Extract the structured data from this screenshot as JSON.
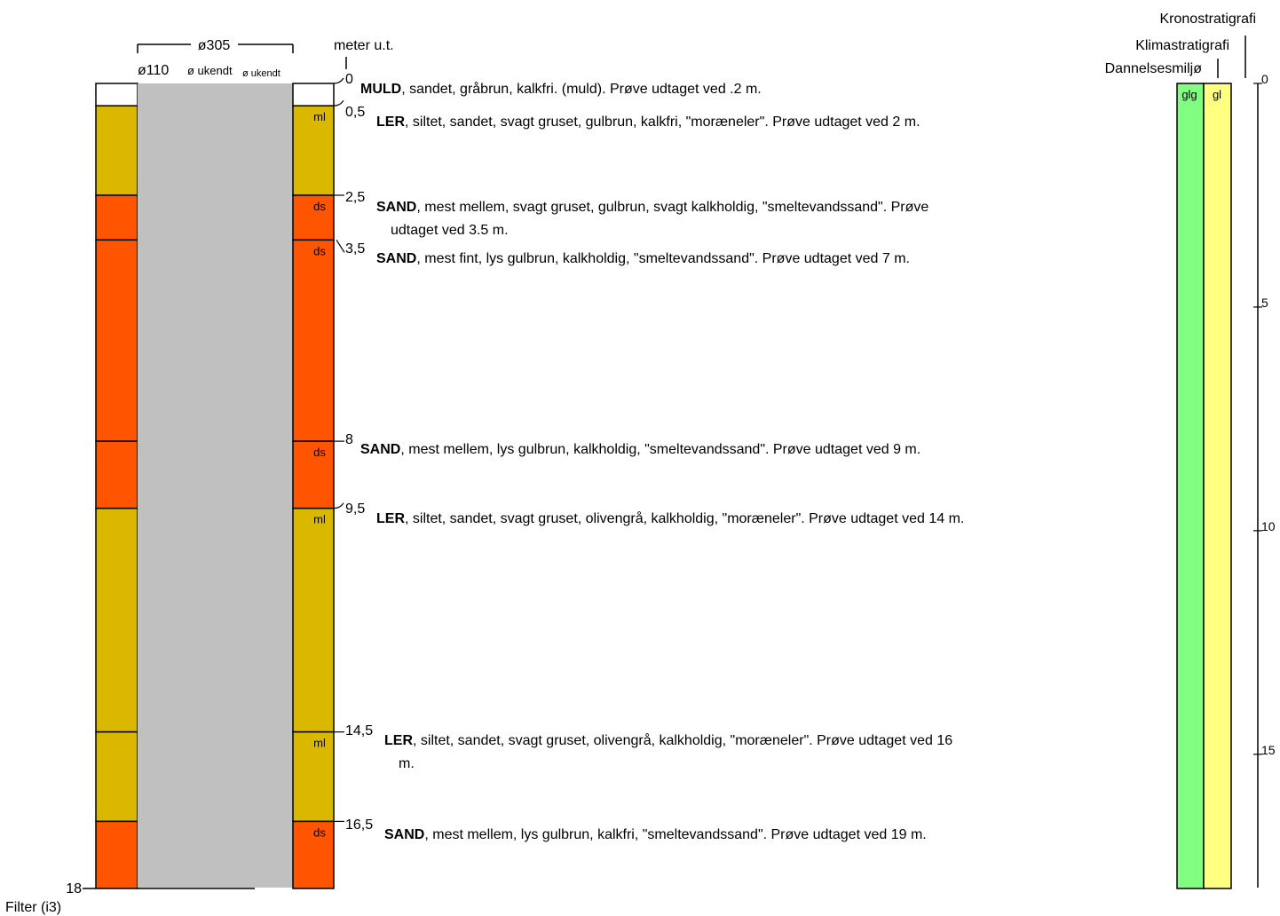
{
  "header": {
    "outer_diameter": "ø305",
    "inner_diameter": "ø110",
    "unknown_diameter_1": "ø ukendt",
    "unknown_diameter_2": "ø ukendt",
    "depth_unit": "meter u.t."
  },
  "bottom": {
    "depth_label": "18",
    "filter_label": "Filter (i3)"
  },
  "layers": [
    {
      "top": 0,
      "bottom": 0.5,
      "code": "",
      "color": "#ffffff",
      "depth_label": "0",
      "name": "MULD",
      "description": ", sandet, gråbrun, kalkfri. (muld). Prøve udtaget ved .2 m.",
      "description_2": ""
    },
    {
      "top": 0.5,
      "bottom": 2.5,
      "code": "ml",
      "color": "#dab800",
      "depth_label": "0,5",
      "name": "LER",
      "description": ", siltet, sandet, svagt gruset, gulbrun, kalkfri, \"moræneler\". Prøve udtaget ved 2 m.",
      "description_2": ""
    },
    {
      "top": 2.5,
      "bottom": 3.5,
      "code": "ds",
      "color": "#ff5500",
      "depth_label": "2,5",
      "name": "SAND",
      "description": ", mest mellem, svagt gruset, gulbrun, svagt kalkholdig, \"smeltevandssand\". Prøve",
      "description_2": "udtaget ved 3.5 m."
    },
    {
      "top": 3.5,
      "bottom": 8,
      "code": "ds",
      "color": "#ff5500",
      "depth_label": "3,5",
      "name": "SAND",
      "description": ", mest fint, lys gulbrun, kalkholdig, \"smeltevandssand\". Prøve udtaget ved 7 m.",
      "description_2": ""
    },
    {
      "top": 8,
      "bottom": 9.5,
      "code": "ds",
      "color": "#ff5500",
      "depth_label": "8",
      "name": "SAND",
      "description": ", mest mellem, lys gulbrun, kalkholdig, \"smeltevandssand\". Prøve udtaget ved 9 m.",
      "description_2": ""
    },
    {
      "top": 9.5,
      "bottom": 14.5,
      "code": "ml",
      "color": "#dab800",
      "depth_label": "9,5",
      "name": "LER",
      "description": ", siltet, sandet, svagt gruset, olivengrå, kalkholdig, \"moræneler\". Prøve udtaget ved 14 m.",
      "description_2": ""
    },
    {
      "top": 14.5,
      "bottom": 16.5,
      "code": "ml",
      "color": "#dab800",
      "depth_label": "14,5",
      "name": "LER",
      "description": ", siltet, sandet, svagt gruset, olivengrå, kalkholdig, \"moræneler\". Prøve udtaget ved 16",
      "description_2": "m."
    },
    {
      "top": 16.5,
      "bottom": 18,
      "code": "ds",
      "color": "#ff5500",
      "depth_label": "16,5",
      "name": "SAND",
      "description": ", mest mellem, lys gulbrun, kalkfri, \"smeltevandssand\". Prøve udtaget ved 19 m.",
      "description_2": ""
    }
  ],
  "strat_headers": {
    "kronostratigrafi": "Kronostratigrafi",
    "klimastratigrafi": "Klimastratigrafi",
    "dannelsesmiljo": "Dannelsesmiljø"
  },
  "strat_columns": {
    "klima": {
      "label": "glg",
      "color": "#80ff80",
      "top": 0,
      "bottom": 18
    },
    "dannelse": {
      "label": "gl",
      "color": "#ffff80",
      "top": 0,
      "bottom": 18
    }
  },
  "depth_scale": {
    "max": 18,
    "ticks": [
      {
        "value": 0,
        "label": "0"
      },
      {
        "value": 5,
        "label": "5"
      },
      {
        "value": 10,
        "label": "10"
      },
      {
        "value": 15,
        "label": "15"
      }
    ]
  },
  "colors": {
    "moraine_clay": "#dab800",
    "meltwater_sand": "#ff5500",
    "casing": "#c0c0c0"
  }
}
